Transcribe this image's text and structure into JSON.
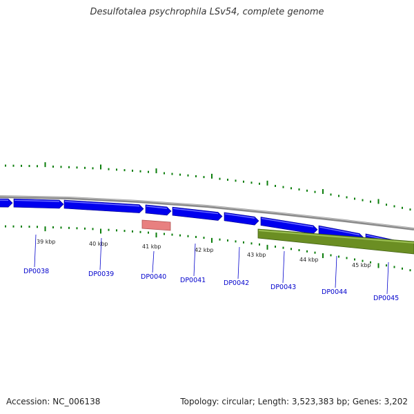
{
  "title": "Desulfotalea psychrophila LSv54, complete genome",
  "footer": {
    "accession": "Accession: NC_006138",
    "summary": "Topology: circular; Length: 3,523,383 bp; Genes: 3,202"
  },
  "colors": {
    "backbone": "#8a8a8a",
    "forward_gene": "#0000ee",
    "rna_gene": "#e88080",
    "reverse_feature": "#6b8e23",
    "gc_tick": "#0a7d0a",
    "label": "#0000cc"
  },
  "kbp_ticks": [
    {
      "label": "39 kbp"
    },
    {
      "label": "40 kbp"
    },
    {
      "label": "41 kbp"
    },
    {
      "label": "42 kbp"
    },
    {
      "label": "43 kbp"
    },
    {
      "label": "44 kbp"
    },
    {
      "label": "45 kbp"
    }
  ],
  "genes": [
    {
      "name": "DP0038",
      "type": "CDS"
    },
    {
      "name": "DP0039",
      "type": "CDS"
    },
    {
      "name": "DP0040",
      "type": "RNA"
    },
    {
      "name": "DP0041",
      "type": "CDS"
    },
    {
      "name": "DP0042",
      "type": "CDS"
    },
    {
      "name": "DP0043",
      "type": "CDS"
    },
    {
      "name": "DP0044",
      "type": "CDS"
    },
    {
      "name": "DP0045",
      "type": "CDS"
    }
  ]
}
